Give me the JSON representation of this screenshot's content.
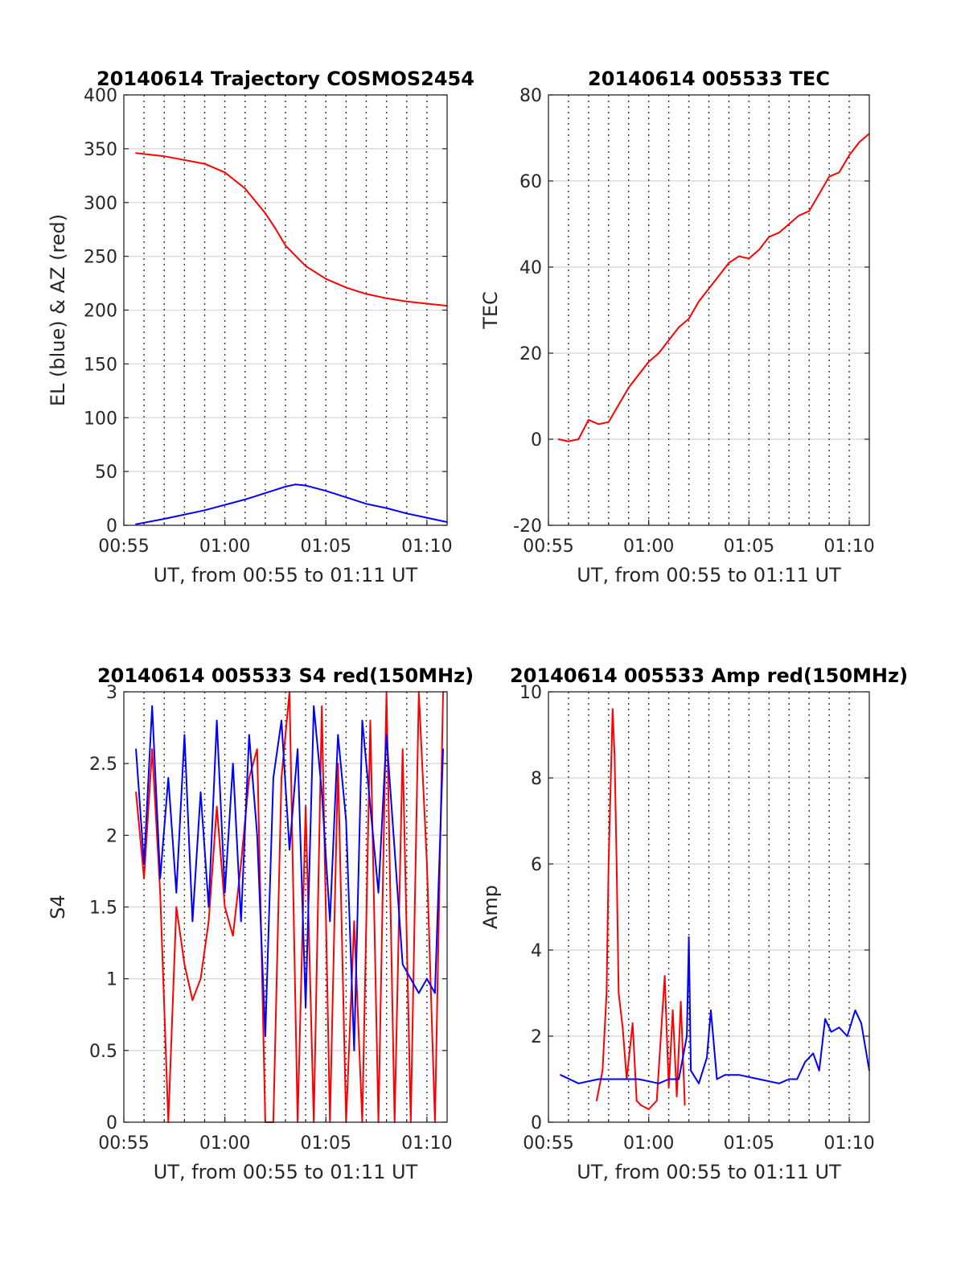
{
  "chart_data": [
    {
      "type": "line",
      "title": "20140614 Trajectory COSMOS2454",
      "xlabel": "UT, from 00:55 to 01:11 UT",
      "ylabel": "EL (blue) & AZ (red)",
      "x_unit": "minutes after 00:55",
      "xlim": [
        0,
        16
      ],
      "ylim": [
        0,
        400
      ],
      "xticks": [
        0,
        5,
        10,
        15
      ],
      "xtick_labels": [
        "00:55",
        "01:00",
        "01:05",
        "01:10"
      ],
      "yticks": [
        0,
        50,
        100,
        150,
        200,
        250,
        300,
        350,
        400
      ],
      "ytick_labels": [
        "0",
        "50",
        "100",
        "150",
        "200",
        "250",
        "300",
        "350",
        "400"
      ],
      "grid": true,
      "series": [
        {
          "name": "AZ",
          "color": "#ff0000",
          "x": [
            0.6,
            2,
            4,
            5,
            6,
            7,
            7.5,
            8,
            9,
            10,
            11,
            12,
            13,
            14,
            15,
            16
          ],
          "y": [
            346,
            343,
            336,
            328,
            313,
            290,
            276,
            260,
            241,
            229,
            221,
            215,
            211,
            208,
            206,
            204
          ]
        },
        {
          "name": "EL",
          "color": "#0000ff",
          "x": [
            0.6,
            2,
            4,
            6,
            7,
            8,
            8.5,
            9,
            10,
            11,
            12,
            13,
            14,
            15,
            16
          ],
          "y": [
            1,
            6,
            14,
            24,
            30,
            36,
            38,
            37,
            32,
            26,
            20,
            16,
            11,
            7,
            3
          ]
        }
      ]
    },
    {
      "type": "line",
      "title": "20140614 005533 TEC",
      "xlabel": "UT, from 00:55 to 01:11 UT",
      "ylabel": "TEC",
      "x_unit": "minutes after 00:55",
      "xlim": [
        0,
        16
      ],
      "ylim": [
        -20,
        80
      ],
      "xticks": [
        0,
        5,
        10,
        15
      ],
      "xtick_labels": [
        "00:55",
        "01:00",
        "01:05",
        "01:10"
      ],
      "yticks": [
        -20,
        0,
        20,
        40,
        60,
        80
      ],
      "ytick_labels": [
        "-20",
        "0",
        "20",
        "40",
        "60",
        "80"
      ],
      "grid": true,
      "series": [
        {
          "name": "TEC",
          "color": "#ff0000",
          "x": [
            0.5,
            1,
            1.5,
            2,
            2.5,
            3,
            3.5,
            4,
            4.5,
            5,
            5.5,
            6,
            6.5,
            7,
            7.5,
            8,
            8.5,
            9,
            9.5,
            10,
            10.5,
            11,
            11.5,
            12,
            12.5,
            13,
            13.5,
            14,
            14.5,
            15,
            15.5,
            16
          ],
          "y": [
            0,
            -0.5,
            0,
            4.5,
            3.5,
            4,
            8,
            12,
            15,
            18,
            20,
            23,
            26,
            28,
            32,
            35,
            38,
            41,
            42.5,
            42,
            44,
            47,
            48,
            50,
            52,
            53,
            57,
            61,
            62,
            66,
            69,
            71
          ]
        }
      ]
    },
    {
      "type": "line",
      "title": "20140614 005533 S4 red(150MHz)",
      "xlabel": "UT, from 00:55 to 01:11 UT",
      "ylabel": "S4",
      "x_unit": "minutes after 00:55",
      "xlim": [
        0,
        16
      ],
      "ylim": [
        0,
        3
      ],
      "xticks": [
        0,
        5,
        10,
        15
      ],
      "xtick_labels": [
        "00:55",
        "01:00",
        "01:05",
        "01:10"
      ],
      "yticks": [
        0,
        0.5,
        1,
        1.5,
        2,
        2.5,
        3
      ],
      "ytick_labels": [
        "0",
        "0.5",
        "1",
        "1.5",
        "2",
        "2.5",
        "3"
      ],
      "grid": true,
      "series": [
        {
          "name": "red",
          "color": "#ff0000",
          "x": [
            0.6,
            1,
            1.4,
            1.8,
            2.2,
            2.6,
            3.0,
            3.4,
            3.8,
            4.2,
            4.6,
            5.0,
            5.4,
            5.8,
            6.2,
            6.6,
            7.0,
            7.4,
            7.8,
            8.2,
            8.6,
            9.0,
            9.4,
            9.8,
            10.2,
            10.6,
            11.0,
            11.4,
            11.8,
            12.2,
            12.6,
            13.0,
            13.4,
            13.8,
            14.2,
            14.6,
            15.0,
            15.4,
            15.8
          ],
          "y": [
            2.3,
            1.7,
            2.6,
            1.6,
            0,
            1.5,
            1.1,
            0.85,
            1.0,
            1.4,
            2.2,
            1.5,
            1.3,
            1.8,
            2.4,
            2.6,
            0,
            0,
            2.4,
            3,
            0,
            2.2,
            0,
            2.9,
            0,
            2.5,
            0,
            1.4,
            0,
            2.8,
            0,
            3,
            0,
            2.6,
            0,
            3,
            1.8,
            0,
            3
          ]
        },
        {
          "name": "blue",
          "color": "#0000ff",
          "x": [
            0.6,
            1,
            1.4,
            1.8,
            2.2,
            2.6,
            3.0,
            3.4,
            3.8,
            4.2,
            4.6,
            5.0,
            5.4,
            5.8,
            6.2,
            6.6,
            7.0,
            7.4,
            7.8,
            8.2,
            8.6,
            9.0,
            9.4,
            9.8,
            10.2,
            10.6,
            11.0,
            11.4,
            11.8,
            12.2,
            12.6,
            13.0,
            13.4,
            13.8,
            14.2,
            14.6,
            15.0,
            15.4,
            15.8
          ],
          "y": [
            2.6,
            1.8,
            2.9,
            1.7,
            2.4,
            1.6,
            2.7,
            1.4,
            2.3,
            1.5,
            2.8,
            1.6,
            2.5,
            1.4,
            2.7,
            2.0,
            0.6,
            2.4,
            2.8,
            1.9,
            2.6,
            0.8,
            2.9,
            2.3,
            1.4,
            2.7,
            2.1,
            0.5,
            2.8,
            2.2,
            1.6,
            2.7,
            1.9,
            1.1,
            1.0,
            0.9,
            1.0,
            0.9,
            2.6
          ]
        }
      ]
    },
    {
      "type": "line",
      "title": "20140614 005533 Amp red(150MHz)",
      "xlabel": "UT, from 00:55 to 01:11 UT",
      "ylabel": "Amp",
      "x_unit": "minutes after 00:55",
      "xlim": [
        0,
        16
      ],
      "ylim": [
        0,
        10
      ],
      "xticks": [
        0,
        5,
        10,
        15
      ],
      "xtick_labels": [
        "00:55",
        "01:00",
        "01:05",
        "01:10"
      ],
      "yticks": [
        0,
        2,
        4,
        6,
        8,
        10
      ],
      "ytick_labels": [
        "0",
        "2",
        "4",
        "6",
        "8",
        "10"
      ],
      "grid": true,
      "series": [
        {
          "name": "red",
          "color": "#ff0000",
          "x": [
            2.4,
            2.7,
            2.9,
            3.0,
            3.1,
            3.2,
            3.3,
            3.4,
            3.5,
            3.7,
            3.9,
            4.2,
            4.4,
            4.6,
            5.0,
            5.4,
            5.8,
            6.0,
            6.2,
            6.4,
            6.6,
            6.8
          ],
          "y": [
            0.5,
            1.2,
            3.0,
            6.0,
            7.8,
            9.6,
            8.5,
            6.0,
            3.0,
            2.2,
            1.0,
            2.3,
            0.5,
            0.4,
            0.3,
            0.5,
            3.4,
            0.8,
            2.6,
            0.6,
            2.8,
            0.4
          ]
        },
        {
          "name": "blue",
          "color": "#0000ff",
          "x": [
            0.6,
            1.5,
            2.5,
            3.5,
            4.5,
            5.5,
            6.0,
            6.5,
            6.9,
            7.0,
            7.1,
            7.5,
            7.9,
            8.1,
            8.4,
            8.8,
            9.5,
            10.5,
            11.5,
            12.0,
            12.4,
            12.8,
            13.2,
            13.5,
            13.8,
            14.1,
            14.5,
            14.9,
            15.3,
            15.6,
            16.0
          ],
          "y": [
            1.1,
            0.9,
            1.0,
            1.0,
            1.0,
            0.9,
            1.0,
            1.0,
            2.0,
            4.3,
            1.2,
            0.9,
            1.5,
            2.6,
            1.0,
            1.1,
            1.1,
            1.0,
            0.9,
            1.0,
            1.0,
            1.4,
            1.6,
            1.2,
            2.4,
            2.1,
            2.2,
            2.0,
            2.6,
            2.3,
            1.2
          ]
        }
      ]
    }
  ]
}
